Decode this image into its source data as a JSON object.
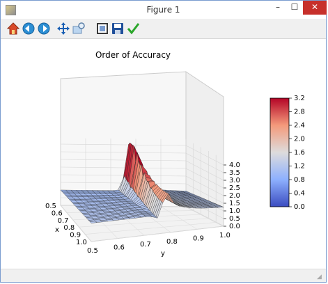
{
  "window": {
    "title": "Figure 1",
    "minimize_glyph": "–",
    "maximize_glyph": "☐",
    "close_glyph": "✕"
  },
  "toolbar": [
    {
      "name": "home-icon"
    },
    {
      "name": "back-icon"
    },
    {
      "name": "forward-icon"
    },
    {
      "name": "pan-icon"
    },
    {
      "name": "zoom-icon"
    },
    {
      "name": "subplots-icon"
    },
    {
      "name": "save-icon"
    },
    {
      "name": "edit-parameters-icon"
    }
  ],
  "colors": {
    "close": "#c7302b",
    "surface_low": "#5a7ff0",
    "surface_high": "#c0222a"
  },
  "chart_data": {
    "type": "surface3d",
    "title": "Order of Accuracy",
    "xlabel": "x",
    "ylabel": "y",
    "x_ticks": [
      "0.5",
      "0.6",
      "0.7",
      "0.8",
      "0.9",
      "1.0"
    ],
    "y_ticks": [
      "0.5",
      "0.6",
      "0.7",
      "0.8",
      "0.9",
      "1.0"
    ],
    "z_ticks": [
      "0.0",
      "0.5",
      "1.0",
      "1.5",
      "2.0",
      "2.5",
      "3.0",
      "3.5",
      "4.0"
    ],
    "xlim": [
      0.5,
      1.0
    ],
    "ylim": [
      0.5,
      1.0
    ],
    "zlim": [
      0.0,
      4.0
    ],
    "colorbar": {
      "ticks": [
        "0.0",
        "0.4",
        "0.8",
        "1.2",
        "1.6",
        "2.0",
        "2.4",
        "2.8",
        "3.2"
      ],
      "range": [
        0.0,
        3.2
      ],
      "colormap": "coolwarm"
    },
    "grid": true
  }
}
